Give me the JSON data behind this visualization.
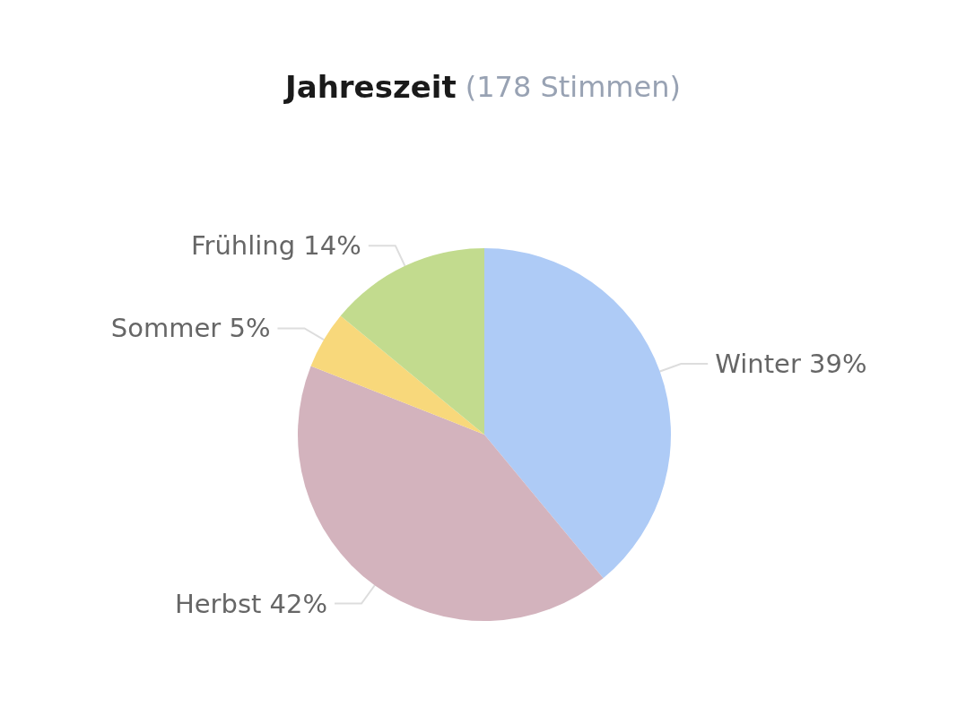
{
  "chart_data": {
    "type": "pie",
    "title": "Jahreszeit",
    "subtitle": "(178 Stimmen)",
    "categories": [
      "Winter",
      "Herbst",
      "Sommer",
      "Frühling"
    ],
    "values": [
      39,
      42,
      5,
      14
    ],
    "value_labels": [
      "39%",
      "42%",
      "5%",
      "14%"
    ],
    "colors": [
      "#aecbf6",
      "#d3b3bd",
      "#f8d87b",
      "#c2db8e"
    ]
  }
}
